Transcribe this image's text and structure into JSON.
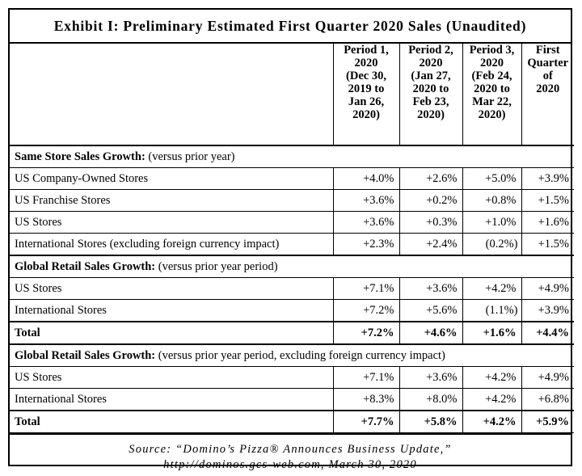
{
  "title": "Exhibit I: Preliminary Estimated First Quarter 2020 Sales (Unaudited)",
  "columns": [
    {
      "lines": [
        "Period 1,",
        "2020",
        "(Dec 30,",
        "2019 to",
        "Jan 26,",
        "2020)"
      ]
    },
    {
      "lines": [
        "Period 2,",
        "2020",
        "(Jan 27,",
        "2020 to",
        "Feb 23,",
        "2020)"
      ]
    },
    {
      "lines": [
        "Period 3,",
        "2020",
        "(Feb 24,",
        "2020 to",
        "Mar 22,",
        "2020)"
      ]
    },
    {
      "lines": [
        "First",
        "Quarter",
        "of",
        "2020"
      ]
    }
  ],
  "sections": [
    {
      "heading_bold": "Same Store Sales Growth:",
      "heading_rest": " (versus prior year)",
      "rows": [
        {
          "label": "US Company-Owned Stores",
          "values": [
            "+4.0%",
            "+2.6%",
            "+5.0%",
            "+3.9%"
          ]
        },
        {
          "label": "US Franchise Stores",
          "values": [
            "+3.6%",
            "+0.2%",
            "+0.8%",
            "+1.5%"
          ]
        },
        {
          "label": "US Stores",
          "values": [
            "+3.6%",
            "+0.3%",
            "+1.0%",
            "+1.6%"
          ]
        },
        {
          "label": "International Stores (excluding foreign currency impact)",
          "values": [
            "+2.3%",
            "+2.4%",
            "(0.2%)",
            "+1.5%"
          ]
        }
      ]
    },
    {
      "heading_bold": "Global Retail Sales Growth:",
      "heading_rest": " (versus prior year period)",
      "rows": [
        {
          "label": "US Stores",
          "values": [
            "+7.1%",
            "+3.6%",
            "+4.2%",
            "+4.9%"
          ]
        },
        {
          "label": "International Stores",
          "values": [
            "+7.2%",
            "+5.6%",
            "(1.1%)",
            "+3.9%"
          ]
        }
      ],
      "total": {
        "label": "Total",
        "values": [
          "+7.2%",
          "+4.6%",
          "+1.6%",
          "+4.4%"
        ]
      }
    },
    {
      "heading_bold": "Global Retail Sales Growth:",
      "heading_rest": " (versus prior year period, excluding foreign currency impact)",
      "rows": [
        {
          "label": "US Stores",
          "values": [
            "+7.1%",
            "+3.6%",
            "+4.2%",
            "+4.9%"
          ]
        },
        {
          "label": "International Stores",
          "values": [
            "+8.3%",
            "+8.0%",
            "+4.2%",
            "+6.8%"
          ]
        }
      ],
      "total": {
        "label": "Total",
        "values": [
          "+7.7%",
          "+5.8%",
          "+4.2%",
          "+5.9%"
        ]
      }
    }
  ],
  "source": {
    "line1": "Source: “Domino’s Pizza® Announces Business Update,”",
    "line2": "http://dominos.gcs-web.com, March 30, 2020"
  }
}
